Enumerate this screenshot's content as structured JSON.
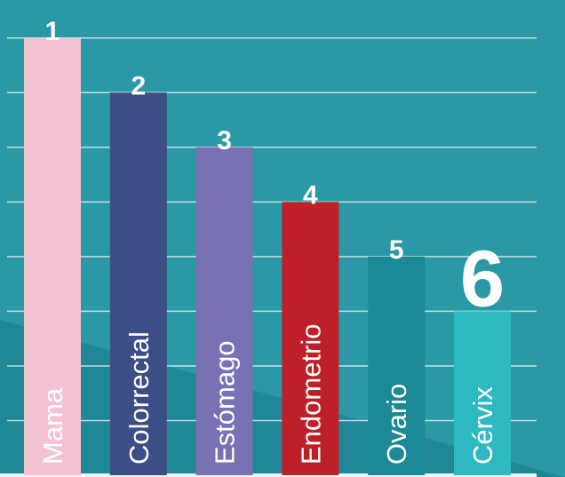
{
  "colors": {
    "background": "#2b98a6",
    "background_shadow": "#1f8796",
    "gridline": "#d9eef0",
    "baseline": "#eef6f7"
  },
  "chart_data": {
    "type": "bar",
    "orientation": "vertical",
    "title": "",
    "xlabel": "",
    "ylabel": "",
    "grid": true,
    "legend": "none",
    "y_axis_labels_shown": false,
    "categories": [
      "Mama",
      "Colorrectal",
      "Estómago",
      "Endometrio",
      "Ovario",
      "Cérvix"
    ],
    "values": [
      8,
      7,
      6,
      5,
      4,
      3
    ],
    "ylim": [
      0,
      8.5
    ],
    "rank_labels": [
      "1",
      "2",
      "3",
      "4",
      "5",
      "6"
    ],
    "highlighted_rank": "6",
    "bar_colors": [
      "#f2c3d1",
      "#3d4e87",
      "#7872b5",
      "#be2027",
      "#1b8a96",
      "#2eb9c2"
    ]
  }
}
